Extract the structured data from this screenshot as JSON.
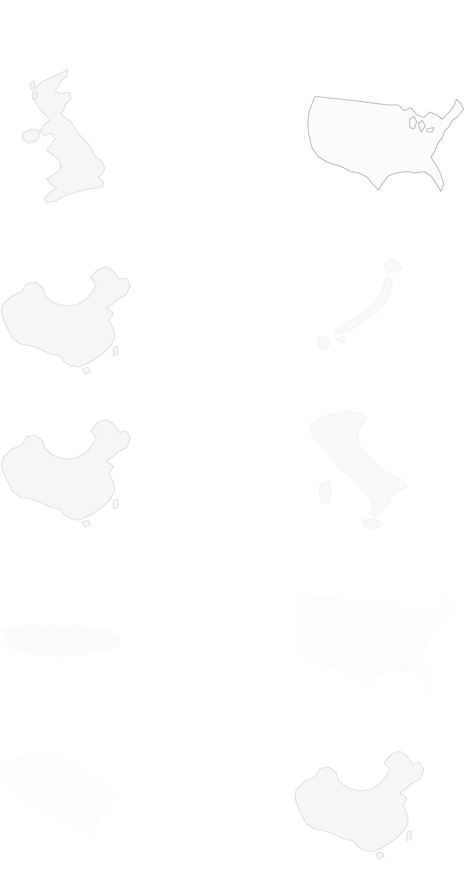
{
  "grid": {
    "tiles": [
      {
        "country": "united-kingdom",
        "style": "normal"
      },
      {
        "country": "united-states",
        "style": "outline"
      },
      {
        "country": "china",
        "style": "normal"
      },
      {
        "country": "japan",
        "style": "faint"
      },
      {
        "country": "china",
        "style": "normal"
      },
      {
        "country": "italy",
        "style": "faint"
      },
      {
        "country": "unknown-faint-shape",
        "style": "ghost"
      },
      {
        "country": "united-states",
        "style": "ghost"
      },
      {
        "country": "belgium",
        "style": "ghost"
      },
      {
        "country": "china",
        "style": "normal"
      }
    ]
  },
  "colors": {
    "background": "#ffffff",
    "silhouette_fill": "#f6f6f6",
    "silhouette_stroke": "#bcbcbc"
  }
}
